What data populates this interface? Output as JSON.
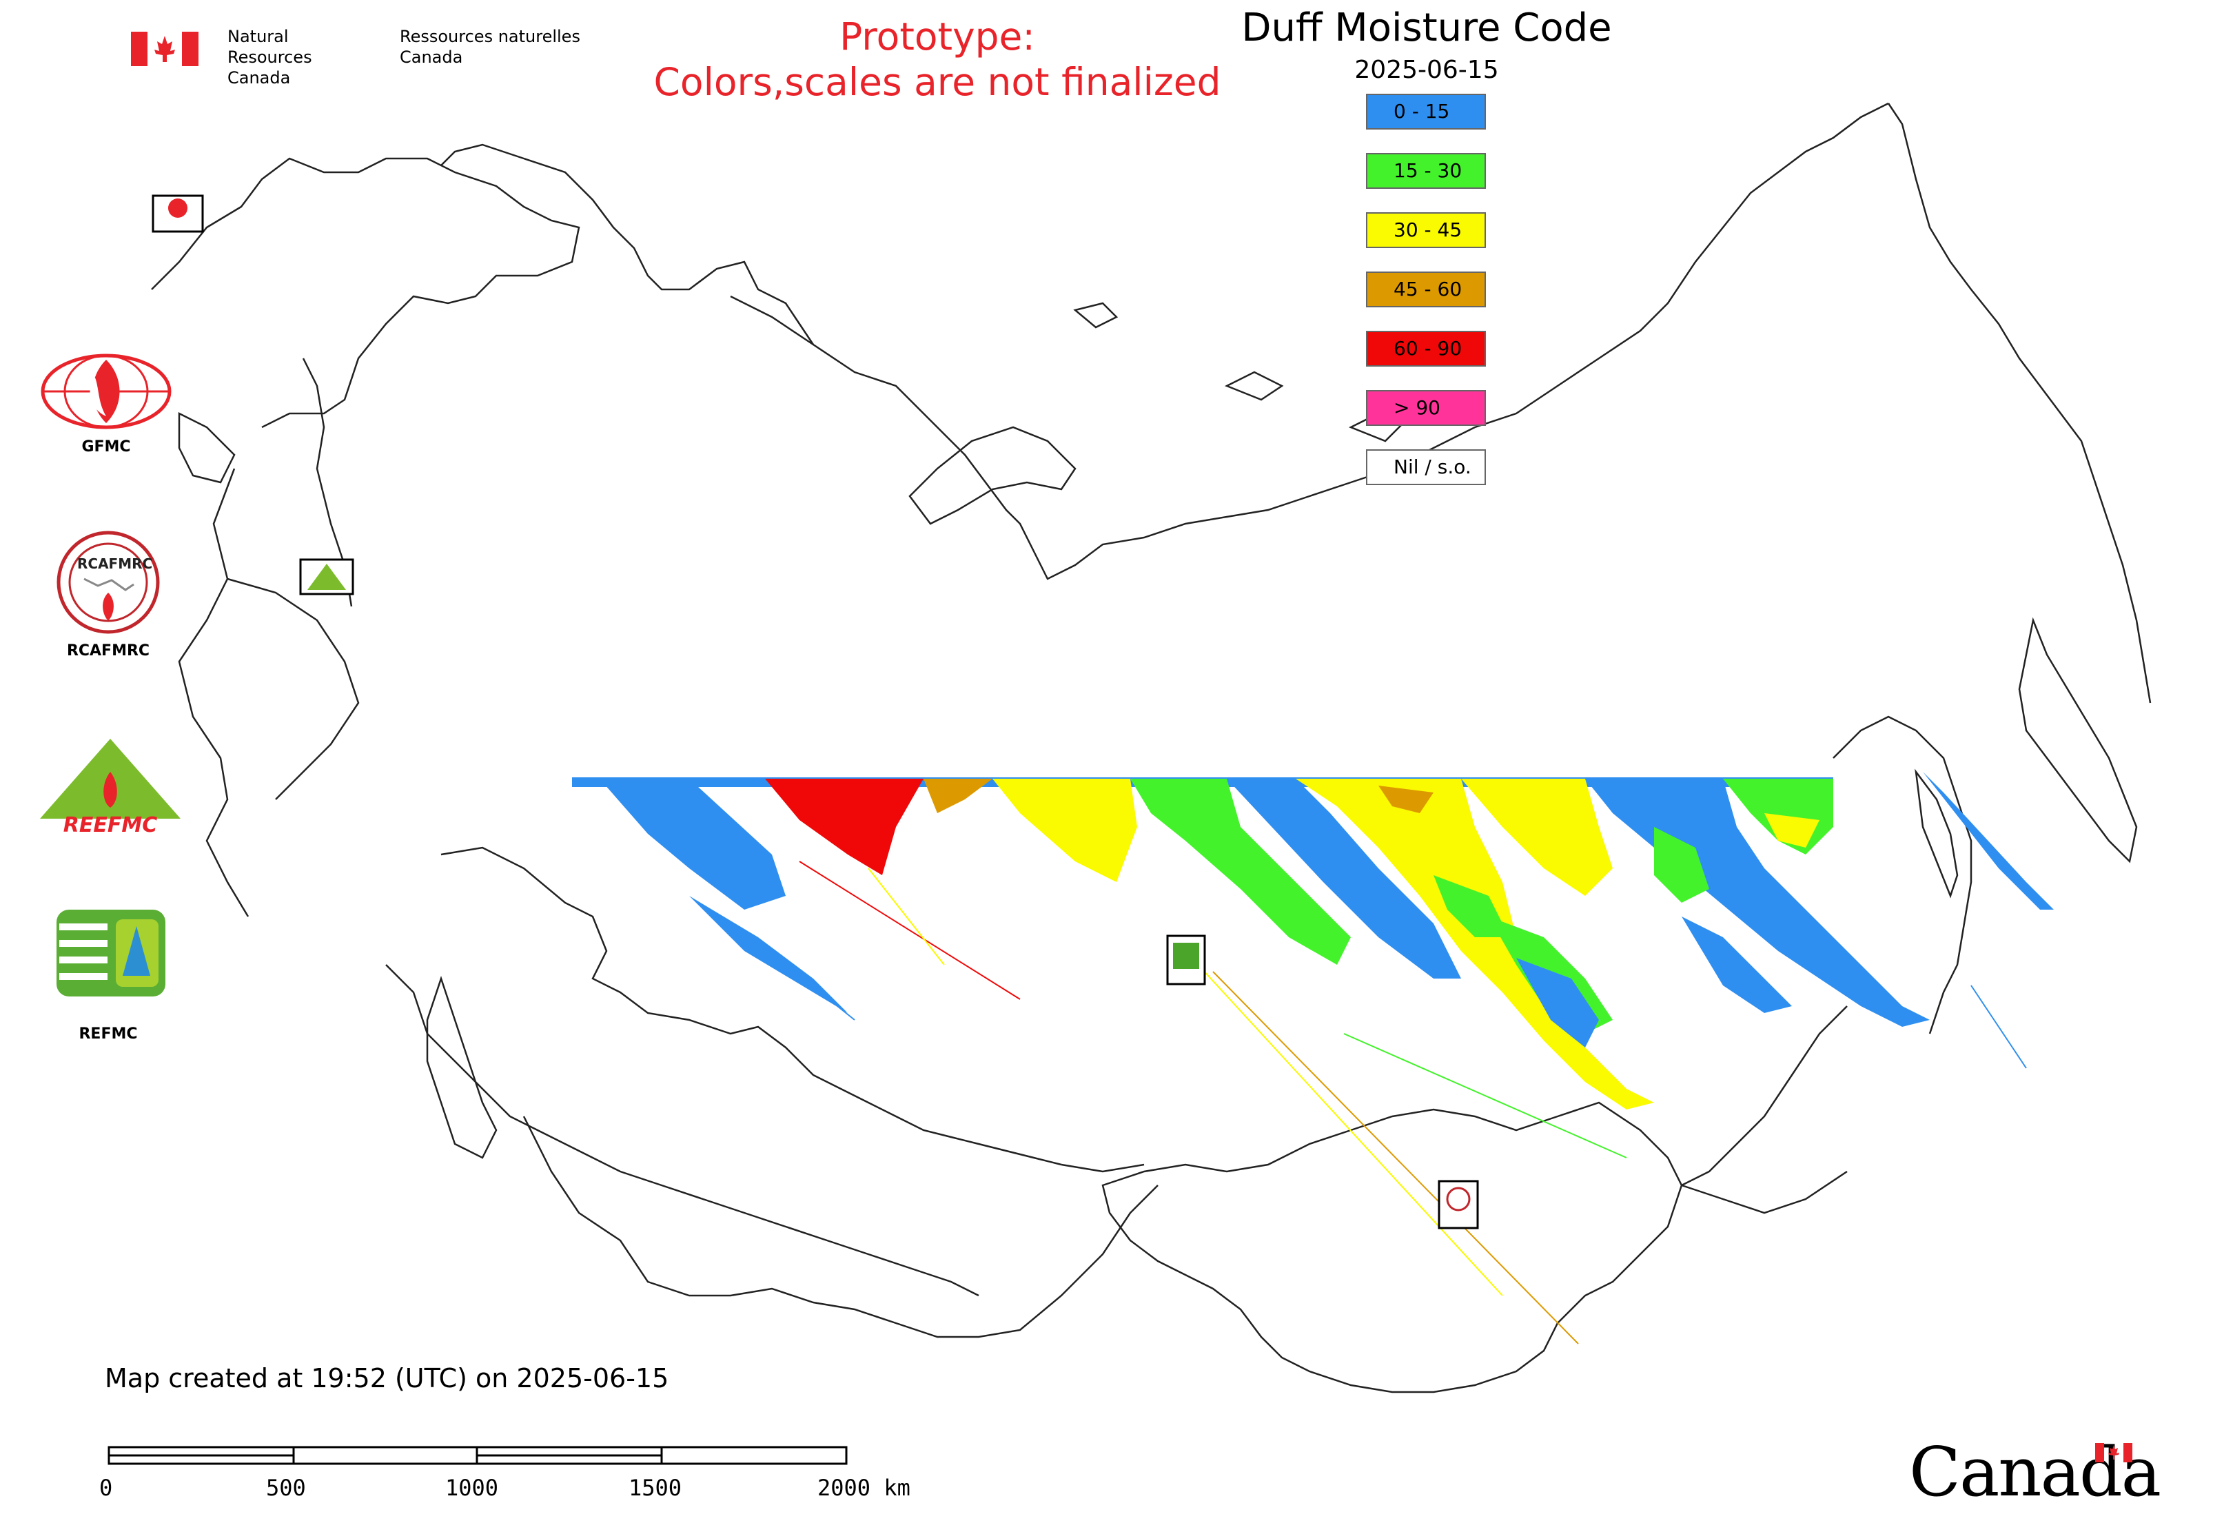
{
  "header": {
    "agency_en_line1": "Natural Resources",
    "agency_en_line2": "Canada",
    "agency_fr_line1": "Ressources naturelles",
    "agency_fr_line2": "Canada",
    "flag_icon": "canada-flag-icon"
  },
  "prototype_notice": {
    "line1": "Prototype:",
    "line2": "Colors,scales are not finalized",
    "color": "#e8232a"
  },
  "map": {
    "title": "Duff Moisture Code",
    "date": "2025-06-15",
    "legend": [
      {
        "label": "0 - 15",
        "color": "#2f8ff0"
      },
      {
        "label": "15 - 30",
        "color": "#44f22c"
      },
      {
        "label": "30 - 45",
        "color": "#fafa00"
      },
      {
        "label": "45 - 60",
        "color": "#dd9a00"
      },
      {
        "label": "60 - 90",
        "color": "#f00808"
      },
      {
        "label": "> 90",
        "color": "#ff3399"
      },
      {
        "label": "Nil / s.o.",
        "color": "#ffffff"
      }
    ]
  },
  "agencies": {
    "gfmc": "GFMC",
    "rcafmrc": "RCAFMRC",
    "reefmc_logo_text": "REEFMC",
    "refmc": "REFMC"
  },
  "map_markers": {
    "gfmc_small": "GFMC",
    "reefmc_small": "REEFMC",
    "refmc_small": "REFMC",
    "rcafmrc_small": "RCAFMRC"
  },
  "footer": {
    "created": "Map created at 19:52 (UTC) on 2025-06-15"
  },
  "scale": {
    "ticks": [
      "0",
      "500",
      "1000",
      "1500",
      "2000 km"
    ]
  },
  "wordmark": "Canada"
}
